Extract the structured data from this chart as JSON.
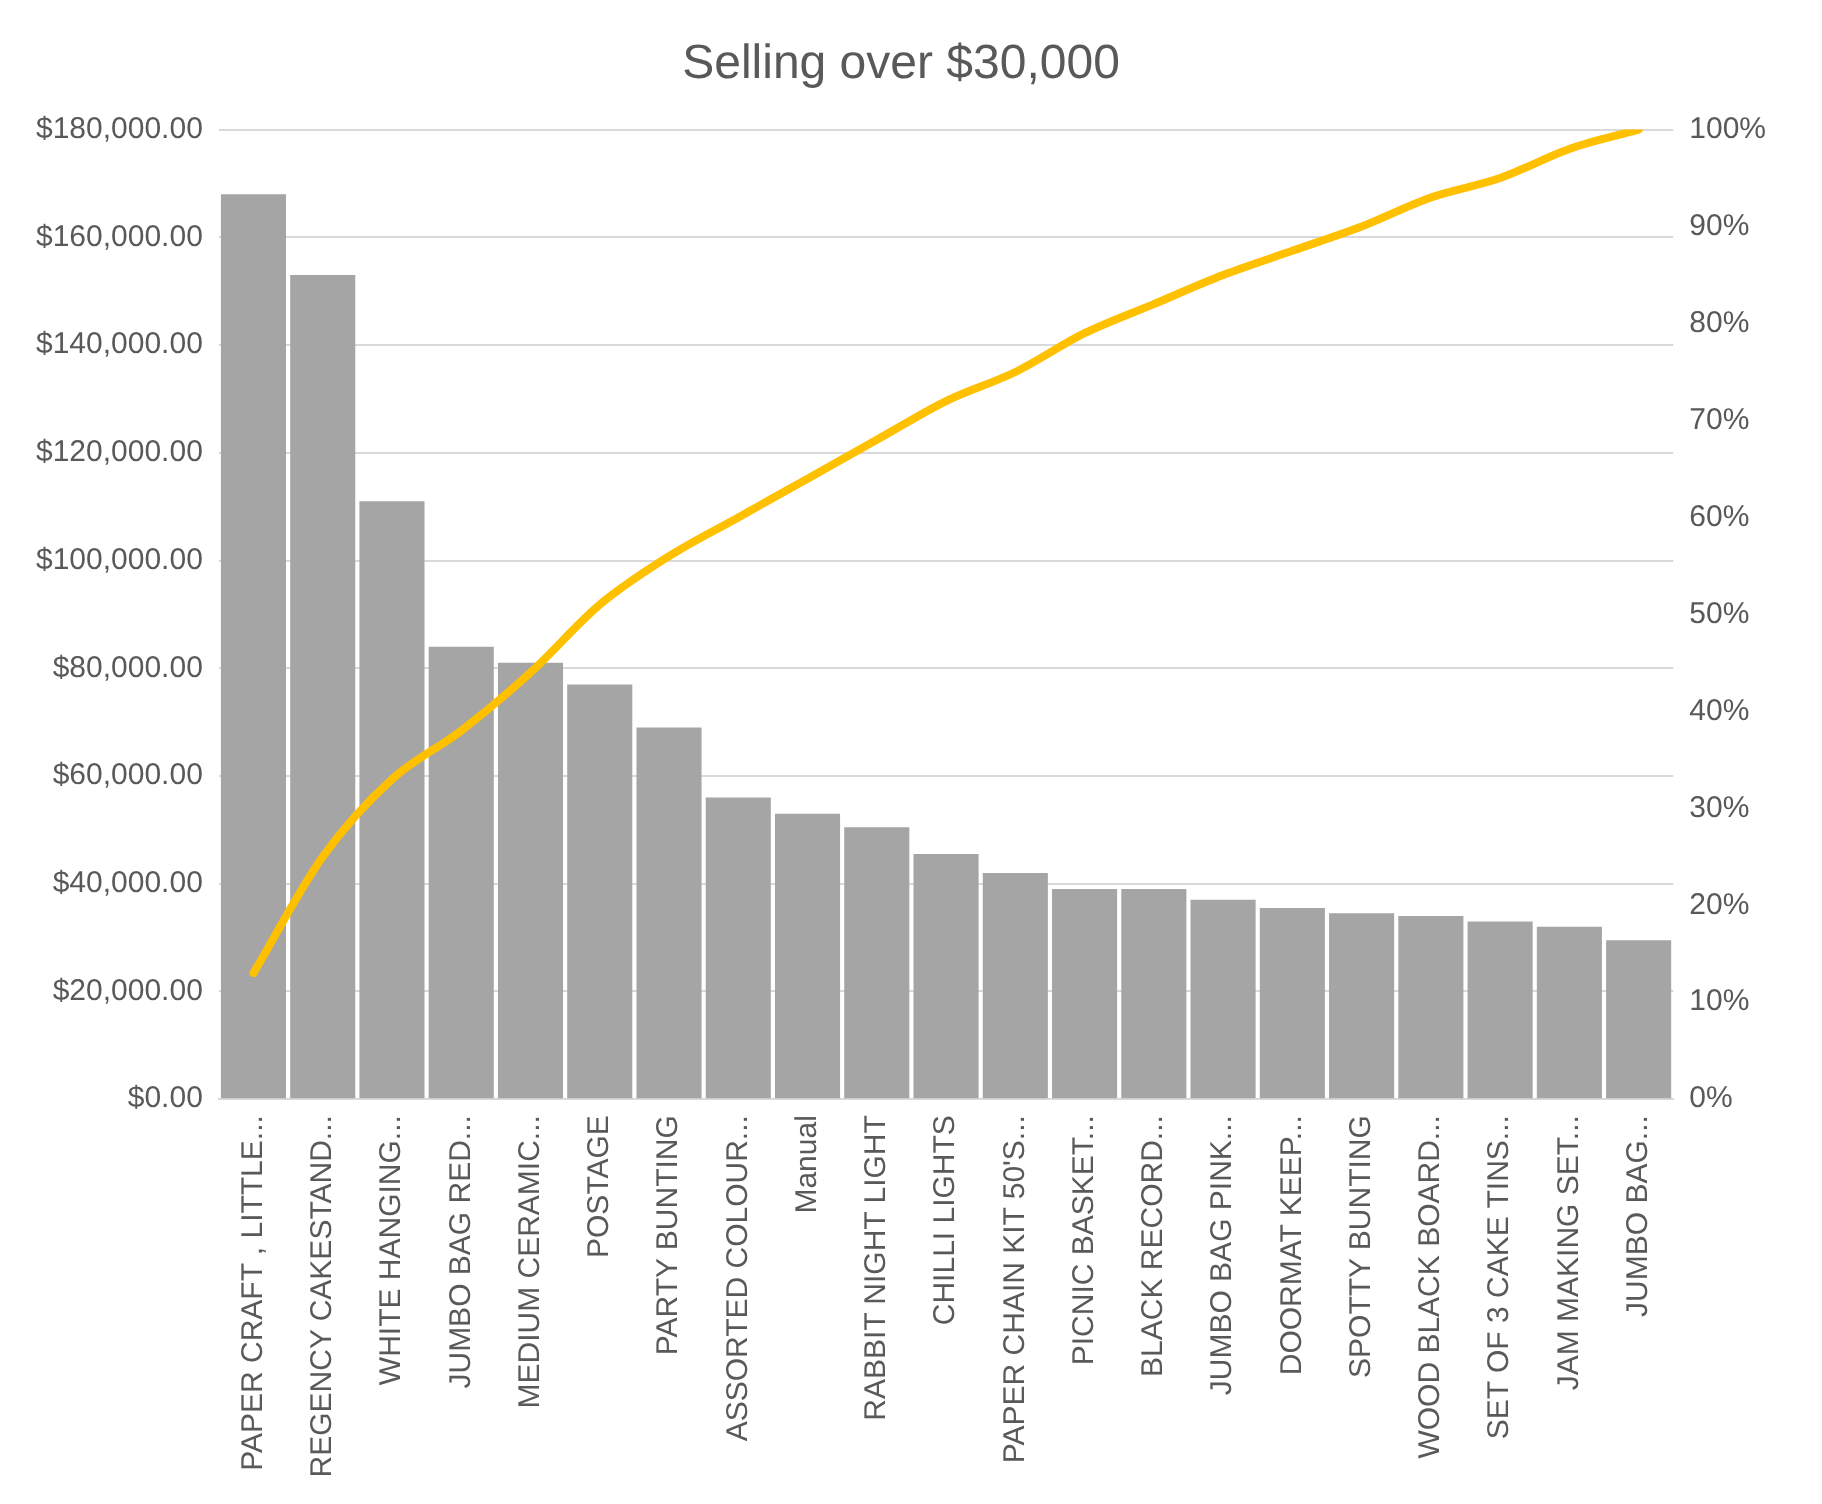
{
  "chart_data": {
    "type": "bar",
    "title": "Selling over $30,000",
    "categories": [
      "PAPER CRAFT , LITTLE...",
      "REGENCY CAKESTAND...",
      "WHITE HANGING...",
      "JUMBO BAG RED...",
      "MEDIUM CERAMIC...",
      "POSTAGE",
      "PARTY BUNTING",
      "ASSORTED COLOUR...",
      "Manual",
      "RABBIT NIGHT LIGHT",
      "CHILLI LIGHTS",
      "PAPER CHAIN KIT 50'S...",
      "PICNIC BASKET...",
      "BLACK RECORD...",
      "JUMBO BAG PINK...",
      "DOORMAT KEEP...",
      "SPOTTY BUNTING",
      "WOOD BLACK BOARD...",
      "SET OF 3 CAKE TINS...",
      "JAM MAKING SET...",
      "JUMBO BAG..."
    ],
    "series": [
      {
        "color": "#a5a5a5",
        "values": [
          168000,
          153000,
          111000,
          84000,
          81000,
          77000,
          69000,
          56000,
          53000,
          50500,
          45500,
          42000,
          39000,
          39000,
          37000,
          35500,
          34500,
          34000,
          33000,
          32000,
          29500
        ]
      },
      {
        "type": "line",
        "axis": "y2",
        "color": "#ffc000",
        "values": [
          13,
          25,
          33,
          38,
          44,
          51,
          56,
          60,
          64,
          68,
          72,
          75,
          79,
          82,
          85,
          87.5,
          90,
          93,
          95,
          98,
          100
        ]
      }
    ],
    "ylim": [
      0,
      180000
    ],
    "yticks": [
      {
        "value": 0,
        "label": "$0.00"
      },
      {
        "value": 20000,
        "label": "$20,000.00"
      },
      {
        "value": 40000,
        "label": "$40,000.00"
      },
      {
        "value": 60000,
        "label": "$60,000.00"
      },
      {
        "value": 80000,
        "label": "$80,000.00"
      },
      {
        "value": 100000,
        "label": "$100,000.00"
      },
      {
        "value": 120000,
        "label": "$120,000.00"
      },
      {
        "value": 140000,
        "label": "$140,000.00"
      },
      {
        "value": 160000,
        "label": "$160,000.00"
      },
      {
        "value": 180000,
        "label": "$180,000.00"
      }
    ],
    "y2lim": [
      0,
      100
    ],
    "y2ticks": [
      {
        "value": 0,
        "label": "0%"
      },
      {
        "value": 10,
        "label": "10%"
      },
      {
        "value": 20,
        "label": "20%"
      },
      {
        "value": 30,
        "label": "30%"
      },
      {
        "value": 40,
        "label": "40%"
      },
      {
        "value": 50,
        "label": "50%"
      },
      {
        "value": 60,
        "label": "60%"
      },
      {
        "value": 70,
        "label": "70%"
      },
      {
        "value": 80,
        "label": "80%"
      },
      {
        "value": 90,
        "label": "90%"
      },
      {
        "value": 100,
        "label": "100%"
      }
    ],
    "grid": "y",
    "marker": "none",
    "line_style": "solid"
  }
}
